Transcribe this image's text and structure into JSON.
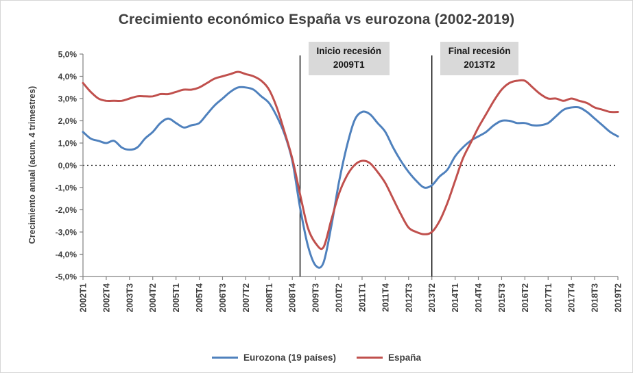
{
  "chart_data": {
    "type": "line",
    "title": "Crecimiento económico España vs eurozona (2002-2019)",
    "ylabel": "Crecimiento anual (acum. 4 trimestres)",
    "ylim": [
      -5,
      5
    ],
    "ytick_labels": [
      "5,0%",
      "4,0%",
      "3,0%",
      "2,0%",
      "1,0%",
      "0,0%",
      "-1,0%",
      "-2,0%",
      "-3,0%",
      "-4,0%",
      "-5,0%"
    ],
    "x_tick_every": 3,
    "x": [
      "2002T1",
      "2002T2",
      "2002T3",
      "2002T4",
      "2003T1",
      "2003T2",
      "2003T3",
      "2003T4",
      "2004T1",
      "2004T2",
      "2004T3",
      "2004T4",
      "2005T1",
      "2005T2",
      "2005T3",
      "2005T4",
      "2006T1",
      "2006T2",
      "2006T3",
      "2006T4",
      "2007T1",
      "2007T2",
      "2007T3",
      "2007T4",
      "2008T1",
      "2008T2",
      "2008T3",
      "2008T4",
      "2009T1",
      "2009T2",
      "2009T3",
      "2009T4",
      "2010T1",
      "2010T2",
      "2010T3",
      "2010T4",
      "2011T1",
      "2011T2",
      "2011T3",
      "2011T4",
      "2012T1",
      "2012T2",
      "2012T3",
      "2012T4",
      "2013T1",
      "2013T2",
      "2013T3",
      "2013T4",
      "2014T1",
      "2014T2",
      "2014T3",
      "2014T4",
      "2015T1",
      "2015T2",
      "2015T3",
      "2015T4",
      "2016T1",
      "2016T2",
      "2016T3",
      "2016T4",
      "2017T1",
      "2017T2",
      "2017T3",
      "2017T4",
      "2018T1",
      "2018T2",
      "2018T3",
      "2018T4",
      "2019T1",
      "2019T2"
    ],
    "series": [
      {
        "name": "Eurozona (19 países)",
        "color": "#4f81bd",
        "values": [
          1.5,
          1.2,
          1.1,
          1.0,
          1.1,
          0.8,
          0.7,
          0.8,
          1.2,
          1.5,
          1.9,
          2.1,
          1.9,
          1.7,
          1.8,
          1.9,
          2.3,
          2.7,
          3.0,
          3.3,
          3.5,
          3.5,
          3.4,
          3.1,
          2.8,
          2.2,
          1.4,
          0.2,
          -1.9,
          -3.6,
          -4.5,
          -4.4,
          -2.8,
          -0.8,
          0.8,
          2.0,
          2.4,
          2.3,
          1.9,
          1.5,
          0.8,
          0.2,
          -0.3,
          -0.7,
          -1.0,
          -0.9,
          -0.5,
          -0.2,
          0.4,
          0.8,
          1.1,
          1.3,
          1.5,
          1.8,
          2.0,
          2.0,
          1.9,
          1.9,
          1.8,
          1.8,
          1.9,
          2.2,
          2.5,
          2.6,
          2.6,
          2.4,
          2.1,
          1.8,
          1.5,
          1.3
        ]
      },
      {
        "name": "España",
        "color": "#c0504d",
        "values": [
          3.7,
          3.3,
          3.0,
          2.9,
          2.9,
          2.9,
          3.0,
          3.1,
          3.1,
          3.1,
          3.2,
          3.2,
          3.3,
          3.4,
          3.4,
          3.5,
          3.7,
          3.9,
          4.0,
          4.1,
          4.2,
          4.1,
          4.0,
          3.8,
          3.4,
          2.6,
          1.5,
          0.3,
          -1.3,
          -2.8,
          -3.5,
          -3.7,
          -2.5,
          -1.3,
          -0.5,
          0.0,
          0.2,
          0.1,
          -0.3,
          -0.8,
          -1.5,
          -2.2,
          -2.8,
          -3.0,
          -3.1,
          -3.0,
          -2.5,
          -1.7,
          -0.7,
          0.3,
          1.0,
          1.7,
          2.3,
          2.9,
          3.4,
          3.7,
          3.8,
          3.8,
          3.5,
          3.2,
          3.0,
          3.0,
          2.9,
          3.0,
          2.9,
          2.8,
          2.6,
          2.5,
          2.4,
          2.4
        ]
      }
    ],
    "annotations": [
      {
        "x": "2009T1",
        "line1": "Inicio recesión",
        "line2": "2009T1"
      },
      {
        "x": "2013T2",
        "line1": "Final recesión",
        "line2": "2013T2"
      }
    ],
    "zero_line": true,
    "grid": false,
    "legend_position": "bottom"
  }
}
